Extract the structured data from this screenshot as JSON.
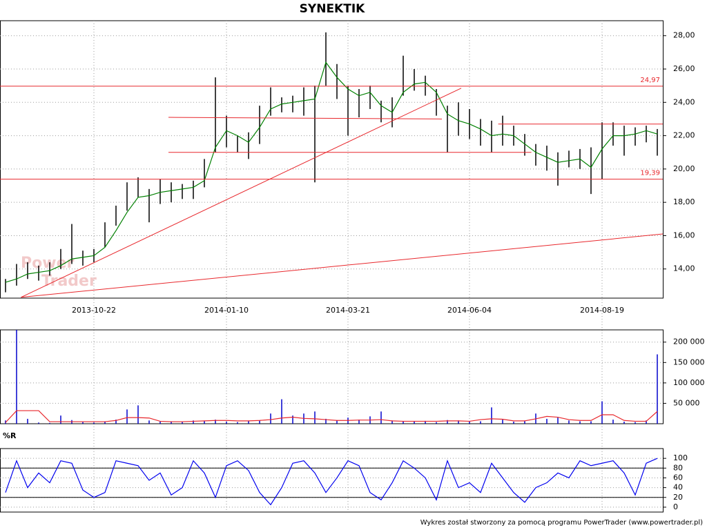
{
  "title": "SYNEKTIK",
  "footer": "Wykres został stworzony za pomocą programu PowerTrader (www.powertrader.pl)",
  "chart_data": [
    {
      "type": "hilo",
      "watermark": [
        "Power",
        "Trader"
      ],
      "categories": [
        null,
        null,
        null,
        null,
        null,
        null,
        null,
        null,
        "2013-10-22",
        null,
        null,
        null,
        null,
        null,
        null,
        null,
        null,
        null,
        null,
        null,
        "2014-01-10",
        null,
        null,
        null,
        null,
        null,
        null,
        null,
        null,
        null,
        null,
        "2014-03-21",
        null,
        null,
        null,
        null,
        null,
        null,
        null,
        null,
        null,
        null,
        "2014-06-04",
        null,
        null,
        null,
        null,
        null,
        null,
        null,
        null,
        null,
        null,
        null,
        "2014-08-19",
        null,
        null,
        null,
        null,
        null
      ],
      "high": [
        13.4,
        14.3,
        14.4,
        14.2,
        14.4,
        15.2,
        16.7,
        15.1,
        15.2,
        16.8,
        17.8,
        19.2,
        19.5,
        18.8,
        19.4,
        19.2,
        19.1,
        19.3,
        20.6,
        25.5,
        23.2,
        22.0,
        22.2,
        23.8,
        24.9,
        24.3,
        24.4,
        24.9,
        25.0,
        28.2,
        26.3,
        25.0,
        24.8,
        25.0,
        24.1,
        24.3,
        26.8,
        26.0,
        25.6,
        24.8,
        23.8,
        24.0,
        23.6,
        23.0,
        22.9,
        23.2,
        22.6,
        22.1,
        21.5,
        21.4,
        21.0,
        21.1,
        21.2,
        21.3,
        22.8,
        22.8,
        22.6,
        22.5,
        22.6,
        22.4
      ],
      "low": [
        12.6,
        13.0,
        13.4,
        13.3,
        13.6,
        14.0,
        14.3,
        14.2,
        14.4,
        15.3,
        16.6,
        17.5,
        18.3,
        16.8,
        17.9,
        18.0,
        18.2,
        18.2,
        18.9,
        21.0,
        21.3,
        21.0,
        20.6,
        21.5,
        23.2,
        23.4,
        23.4,
        23.2,
        19.2,
        25.0,
        24.2,
        22.0,
        23.1,
        23.6,
        22.8,
        22.5,
        24.4,
        24.7,
        24.4,
        23.2,
        21.0,
        22.0,
        21.8,
        21.4,
        21.0,
        21.4,
        21.4,
        20.8,
        20.2,
        19.9,
        19.0,
        20.1,
        20.0,
        18.5,
        19.4,
        21.4,
        20.8,
        21.4,
        21.6,
        20.8
      ],
      "bar_color": "#000000",
      "ma": [
        13.2,
        13.4,
        13.7,
        13.8,
        13.9,
        14.2,
        14.6,
        14.7,
        14.8,
        15.3,
        16.3,
        17.4,
        18.3,
        18.4,
        18.6,
        18.7,
        18.8,
        18.9,
        19.3,
        21.3,
        22.3,
        22.0,
        21.6,
        22.5,
        23.6,
        23.9,
        24.0,
        24.1,
        24.2,
        26.4,
        25.5,
        24.8,
        24.4,
        24.6,
        23.8,
        23.4,
        24.6,
        25.1,
        25.2,
        24.6,
        23.3,
        22.9,
        22.7,
        22.4,
        22.0,
        22.1,
        22.0,
        21.5,
        21.0,
        20.7,
        20.4,
        20.5,
        20.6,
        20.1,
        21.2,
        22.0,
        22.0,
        22.1,
        22.3,
        22.1
      ],
      "ma_color": "#008000",
      "levels": [
        {
          "value": 24.97,
          "label": "24,97"
        },
        {
          "value": 19.39,
          "label": "19,39"
        }
      ],
      "lines": [
        {
          "x": [
            1.4,
            41.25
          ],
          "y": [
            12.3,
            24.85
          ]
        },
        {
          "x": [
            1.4,
            59.5
          ],
          "y": [
            12.3,
            16.1
          ]
        },
        {
          "x": [
            14.75,
            39.5
          ],
          "y": [
            23.1,
            23.0
          ]
        },
        {
          "x": [
            14.75,
            47.6
          ],
          "y": [
            21.0,
            21.0
          ]
        },
        {
          "x": [
            44.6,
            59.5
          ],
          "y": [
            22.7,
            22.7
          ]
        }
      ],
      "line_color": "#e8262b",
      "ylim": [
        12.25,
        28.9
      ],
      "yticks": [
        {
          "value": 14,
          "label": "14,00"
        },
        {
          "value": 16,
          "label": "16,00"
        },
        {
          "value": 18,
          "label": "18,00"
        },
        {
          "value": 20,
          "label": "20,00"
        },
        {
          "value": 22,
          "label": "22,00"
        },
        {
          "value": 24,
          "label": "24,00"
        },
        {
          "value": 26,
          "label": "26,00"
        },
        {
          "value": 28,
          "label": "28,00"
        }
      ],
      "grid": true
    },
    {
      "type": "bar",
      "color": "#0000cc",
      "values": [
        8000,
        230000,
        12000,
        3000,
        2000,
        20000,
        9000,
        4000,
        3000,
        6000,
        10000,
        35000,
        45000,
        8000,
        5000,
        6000,
        4000,
        8000,
        6000,
        10000,
        5000,
        4000,
        6000,
        8000,
        25000,
        60000,
        20000,
        25000,
        30000,
        12000,
        8000,
        15000,
        10000,
        18000,
        30000,
        8000,
        6000,
        5000,
        7000,
        4000,
        9000,
        8000,
        5000,
        6000,
        40000,
        10000,
        5000,
        6000,
        25000,
        12000,
        15000,
        8000,
        6000,
        6000,
        55000,
        10000,
        5000,
        4000,
        8000,
        170000
      ],
      "avg": [
        3000,
        32000,
        32000,
        32000,
        5000,
        5000,
        5000,
        5000,
        5000,
        5000,
        8000,
        15000,
        15000,
        14000,
        6000,
        5000,
        5000,
        6000,
        7000,
        8000,
        8000,
        7000,
        7000,
        8000,
        10000,
        14000,
        16000,
        13000,
        12000,
        10000,
        8000,
        8000,
        9000,
        9000,
        10000,
        7000,
        6000,
        6000,
        6000,
        6000,
        7000,
        7000,
        6000,
        10000,
        12000,
        11000,
        7000,
        7000,
        12000,
        18000,
        16000,
        10000,
        8000,
        8000,
        22000,
        22000,
        8000,
        6000,
        6000,
        30000
      ],
      "avg_color": "#e8262b",
      "ylim": [
        0,
        230000
      ],
      "yticks": [
        {
          "value": 50000,
          "label": "50 000"
        },
        {
          "value": 100000,
          "label": "100 000"
        },
        {
          "value": 150000,
          "label": "150 000"
        },
        {
          "value": 200000,
          "label": "200 000"
        }
      ],
      "grid": true
    },
    {
      "type": "line",
      "title": "%R",
      "color": "#0000ee",
      "values": [
        30,
        95,
        40,
        70,
        50,
        95,
        90,
        35,
        20,
        30,
        95,
        90,
        85,
        55,
        70,
        25,
        40,
        95,
        70,
        20,
        85,
        95,
        75,
        30,
        5,
        40,
        90,
        95,
        70,
        30,
        60,
        95,
        85,
        30,
        15,
        50,
        95,
        80,
        60,
        15,
        95,
        40,
        50,
        30,
        90,
        60,
        30,
        10,
        40,
        50,
        70,
        60,
        95,
        85,
        90,
        95,
        70,
        25,
        90,
        100
      ],
      "levels": [
        20,
        80
      ],
      "ylim": [
        -10,
        120
      ],
      "yticks": [
        0,
        20,
        40,
        60,
        80,
        100
      ],
      "grid": true
    }
  ]
}
